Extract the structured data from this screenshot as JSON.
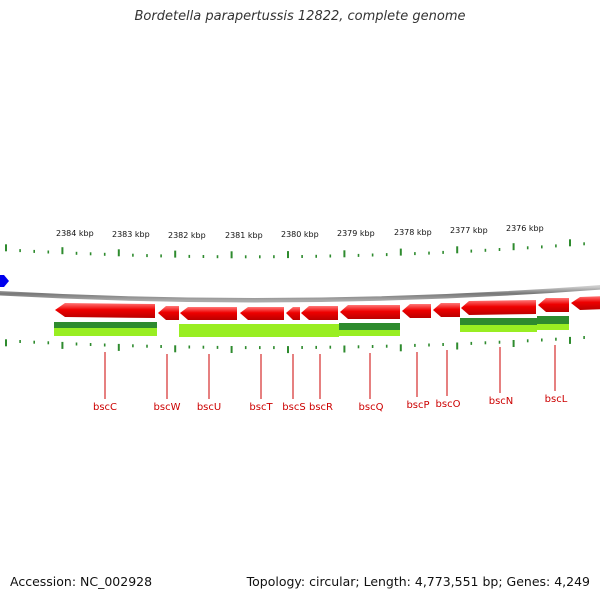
{
  "title": "Bordetella parapertussis 12822, complete genome",
  "footer": {
    "accession": "Accession: NC_002928",
    "summary": "Topology: circular; Length: 4,773,551 bp; Genes: 4,249"
  },
  "colors": {
    "backbone": "#888888",
    "forward_gene": "#ee0000",
    "tick": "#2e8b2e",
    "cds_dark": "#2e8b2e",
    "cds_light": "#99ee22",
    "label": "#cc0000",
    "marker": "#0000ee"
  },
  "ruler": {
    "labels": [
      "2384 kbp",
      "2383 kbp",
      "2382 kbp",
      "2381 kbp",
      "2380 kbp",
      "2379 kbp",
      "2378 kbp",
      "2377 kbp",
      "2376 kbp"
    ]
  },
  "genes": [
    {
      "name": "bscC"
    },
    {
      "name": "bscW"
    },
    {
      "name": "bscU"
    },
    {
      "name": "bscT"
    },
    {
      "name": "bscS"
    },
    {
      "name": "bscR"
    },
    {
      "name": "bscQ"
    },
    {
      "name": "bscP"
    },
    {
      "name": "bscO"
    },
    {
      "name": "bscN"
    },
    {
      "name": "bscL"
    }
  ],
  "icons": {
    "marker": "blue-hexagon-marker-icon"
  }
}
